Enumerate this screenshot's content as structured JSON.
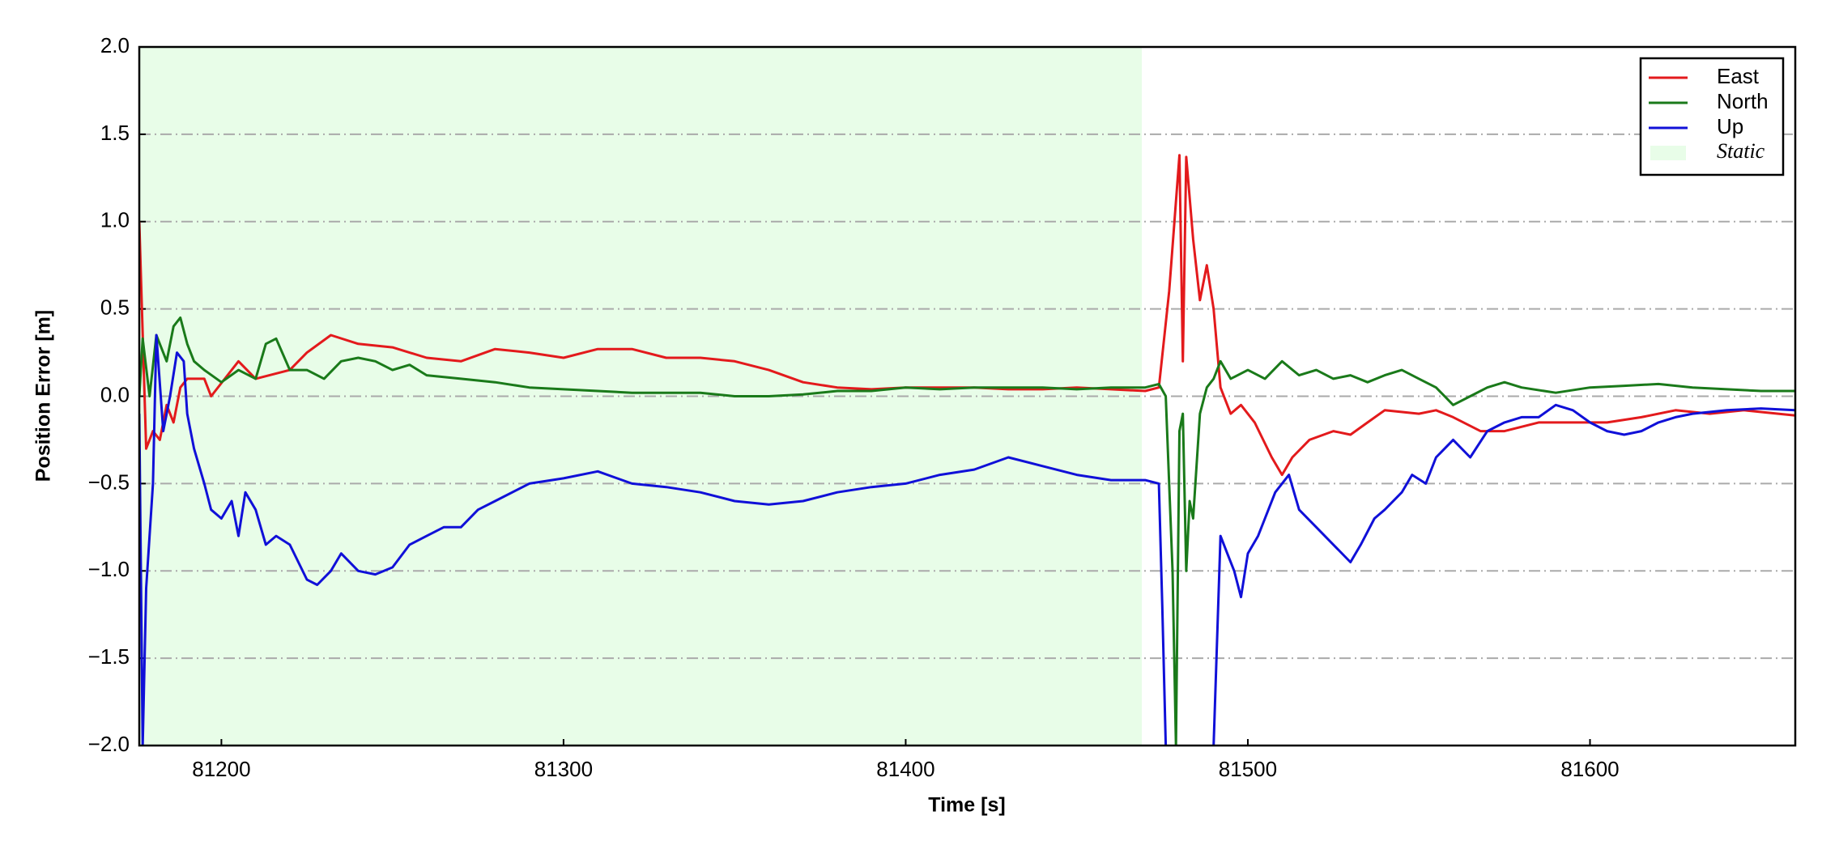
{
  "chart_data": {
    "type": "line",
    "xlabel": "Time [s]",
    "ylabel": "Position Error [m]",
    "xlim": [
      81176,
      81660
    ],
    "ylim": [
      -2,
      2
    ],
    "xticks": [
      81200,
      81300,
      81400,
      81500,
      81600
    ],
    "yticks": [
      {
        "value": -2,
        "label": "−2.0"
      },
      {
        "value": -1.5,
        "label": "−1.5"
      },
      {
        "value": -1,
        "label": "−1.0"
      },
      {
        "value": -0.5,
        "label": "−0.5"
      },
      {
        "value": 0,
        "label": "0.0"
      },
      0.5,
      {
        "value": 1,
        "label": "1.0"
      },
      1.5,
      {
        "value": 2,
        "label": "2.0"
      }
    ],
    "grid": "y",
    "legend": "upper right",
    "spans": [
      {
        "name": "Static",
        "start": 81176,
        "end": 81469,
        "color": "#e8fde8"
      }
    ],
    "series": [
      {
        "name": "East",
        "color": "#e31a1c",
        "x": [
          81176,
          81178,
          81180,
          81182,
          81184,
          81186,
          81188,
          81190,
          81195,
          81197,
          81205,
          81210,
          81220,
          81225,
          81232,
          81240,
          81250,
          81260,
          81270,
          81280,
          81290,
          81300,
          81310,
          81320,
          81330,
          81340,
          81350,
          81360,
          81370,
          81380,
          81390,
          81400,
          81410,
          81420,
          81430,
          81440,
          81450,
          81460,
          81470,
          81474,
          81477,
          81480,
          81481,
          81482,
          81484,
          81486,
          81488,
          81490,
          81492,
          81495,
          81498,
          81502,
          81507,
          81510,
          81513,
          81518,
          81525,
          81530,
          81535,
          81540,
          81550,
          81555,
          81560,
          81568,
          81575,
          81585,
          81595,
          81605,
          81615,
          81625,
          81635,
          81645,
          81655,
          81660
        ],
        "values": [
          1.0,
          -0.3,
          -0.2,
          -0.25,
          -0.05,
          -0.15,
          0.05,
          0.1,
          0.1,
          0.0,
          0.2,
          0.1,
          0.15,
          0.25,
          0.35,
          0.3,
          0.28,
          0.22,
          0.2,
          0.27,
          0.25,
          0.22,
          0.27,
          0.27,
          0.22,
          0.22,
          0.2,
          0.15,
          0.08,
          0.05,
          0.04,
          0.05,
          0.05,
          0.05,
          0.04,
          0.04,
          0.05,
          0.04,
          0.03,
          0.05,
          0.6,
          1.38,
          0.2,
          1.37,
          0.9,
          0.55,
          0.75,
          0.5,
          0.05,
          -0.1,
          -0.05,
          -0.15,
          -0.35,
          -0.45,
          -0.35,
          -0.25,
          -0.2,
          -0.22,
          -0.15,
          -0.08,
          -0.1,
          -0.08,
          -0.12,
          -0.2,
          -0.2,
          -0.15,
          -0.15,
          -0.15,
          -0.12,
          -0.08,
          -0.1,
          -0.08,
          -0.1,
          -0.11
        ]
      },
      {
        "name": "North",
        "color": "#1a7a1a",
        "x": [
          81176,
          81177,
          81179,
          81181,
          81184,
          81186,
          81188,
          81190,
          81192,
          81195,
          81200,
          81205,
          81210,
          81213,
          81216,
          81220,
          81225,
          81230,
          81235,
          81240,
          81245,
          81250,
          81255,
          81260,
          81270,
          81280,
          81290,
          81300,
          81310,
          81320,
          81330,
          81340,
          81350,
          81360,
          81370,
          81380,
          81390,
          81400,
          81410,
          81420,
          81430,
          81440,
          81450,
          81460,
          81470,
          81474,
          81476,
          81478,
          81479,
          81480,
          81481,
          81482,
          81483,
          81484,
          81486,
          81488,
          81490,
          81492,
          81495,
          81500,
          81505,
          81510,
          81515,
          81520,
          81525,
          81530,
          81535,
          81540,
          81545,
          81550,
          81555,
          81560,
          81565,
          81570,
          81575,
          81580,
          81590,
          81600,
          81610,
          81620,
          81630,
          81640,
          81650,
          81660
        ],
        "values": [
          0.0,
          0.33,
          0.0,
          0.35,
          0.2,
          0.4,
          0.45,
          0.3,
          0.2,
          0.15,
          0.08,
          0.15,
          0.1,
          0.3,
          0.33,
          0.15,
          0.15,
          0.1,
          0.2,
          0.22,
          0.2,
          0.15,
          0.18,
          0.12,
          0.1,
          0.08,
          0.05,
          0.04,
          0.03,
          0.02,
          0.02,
          0.02,
          0.0,
          0.0,
          0.01,
          0.03,
          0.03,
          0.05,
          0.04,
          0.05,
          0.05,
          0.05,
          0.04,
          0.05,
          0.05,
          0.07,
          0.0,
          -1.0,
          -2.0,
          -0.2,
          -0.1,
          -1.0,
          -0.6,
          -0.7,
          -0.1,
          0.05,
          0.1,
          0.2,
          0.1,
          0.15,
          0.1,
          0.2,
          0.12,
          0.15,
          0.1,
          0.12,
          0.08,
          0.12,
          0.15,
          0.1,
          0.05,
          -0.05,
          0.0,
          0.05,
          0.08,
          0.05,
          0.02,
          0.05,
          0.06,
          0.07,
          0.05,
          0.04,
          0.03,
          0.03
        ]
      },
      {
        "name": "Up",
        "color": "#1010d8",
        "x": [
          81176,
          81177,
          81178,
          81180,
          81181,
          81183,
          81185,
          81187,
          81189,
          81190,
          81192,
          81195,
          81197,
          81200,
          81203,
          81205,
          81207,
          81210,
          81213,
          81216,
          81220,
          81225,
          81228,
          81232,
          81235,
          81240,
          81245,
          81250,
          81255,
          81260,
          81265,
          81270,
          81275,
          81280,
          81290,
          81300,
          81310,
          81320,
          81330,
          81340,
          81350,
          81360,
          81370,
          81380,
          81390,
          81400,
          81410,
          81420,
          81430,
          81440,
          81450,
          81460,
          81470,
          81474,
          81475,
          81476,
          81477,
          81490,
          81492,
          81494,
          81496,
          81498,
          81500,
          81503,
          81505,
          81508,
          81512,
          81515,
          81520,
          81525,
          81530,
          81533,
          81537,
          81540,
          81545,
          81548,
          81552,
          81555,
          81560,
          81565,
          81570,
          81575,
          81580,
          81585,
          81590,
          81595,
          81600,
          81605,
          81610,
          81615,
          81620,
          81625,
          81630,
          81640,
          81650,
          81660
        ],
        "values": [
          -0.1,
          -2.0,
          -1.1,
          -0.5,
          0.35,
          -0.2,
          0.0,
          0.25,
          0.2,
          -0.1,
          -0.3,
          -0.5,
          -0.65,
          -0.7,
          -0.6,
          -0.8,
          -0.55,
          -0.65,
          -0.85,
          -0.8,
          -0.85,
          -1.05,
          -1.08,
          -1.0,
          -0.9,
          -1.0,
          -1.02,
          -0.98,
          -0.85,
          -0.8,
          -0.75,
          -0.75,
          -0.65,
          -0.6,
          -0.5,
          -0.47,
          -0.43,
          -0.5,
          -0.52,
          -0.55,
          -0.6,
          -0.62,
          -0.6,
          -0.55,
          -0.52,
          -0.5,
          -0.45,
          -0.42,
          -0.35,
          -0.4,
          -0.45,
          -0.48,
          -0.48,
          -0.5,
          -1.2,
          -2.0,
          null,
          -2.0,
          -0.8,
          -0.9,
          -1.0,
          -1.15,
          -0.9,
          -0.8,
          -0.7,
          -0.55,
          -0.45,
          -0.65,
          -0.75,
          -0.85,
          -0.95,
          -0.85,
          -0.7,
          -0.65,
          -0.55,
          -0.45,
          -0.5,
          -0.35,
          -0.25,
          -0.35,
          -0.2,
          -0.15,
          -0.12,
          -0.12,
          -0.05,
          -0.08,
          -0.15,
          -0.2,
          -0.22,
          -0.2,
          -0.15,
          -0.12,
          -0.1,
          -0.08,
          -0.07,
          -0.08
        ]
      }
    ]
  }
}
